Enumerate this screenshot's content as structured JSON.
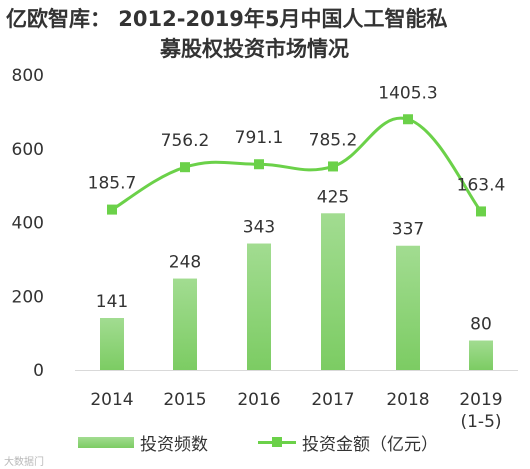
{
  "title_line1": "亿欧智库： 2012-2019年5月中国人工智能私",
  "title_line2": "募股权投资市场情况",
  "watermark": "大数据门",
  "colors": {
    "bar_top": "#a2dc91",
    "bar_bottom": "#7ccc63",
    "line": "#6bd149",
    "text": "#333333"
  },
  "chart_data": {
    "type": "bar+line",
    "title": "亿欧智库： 2012-2019年5月中国人工智能私募股权投资市场情况",
    "categories": [
      "2014",
      "2015",
      "2016",
      "2017",
      "2018",
      "2019\n(1-5)"
    ],
    "ylim": [
      0,
      800
    ],
    "yticks": [
      0,
      200,
      400,
      600,
      800
    ],
    "grid": false,
    "legend_position": "bottom",
    "series": [
      {
        "name": "投资频数",
        "type": "bar",
        "values": [
          141,
          248,
          343,
          425,
          337,
          80
        ],
        "labels": [
          "141",
          "248",
          "343",
          "425",
          "337",
          "80"
        ]
      },
      {
        "name": "投资金额（亿元）",
        "type": "line",
        "smooth": true,
        "values": [
          185.7,
          756.2,
          791.1,
          785.2,
          1405.3,
          163.4
        ],
        "plot_positions": [
          435,
          550,
          558,
          552,
          680,
          430
        ],
        "labels": [
          "185.7",
          "756.2",
          "791.1",
          "785.2",
          "1405.3",
          "163.4"
        ]
      }
    ]
  }
}
